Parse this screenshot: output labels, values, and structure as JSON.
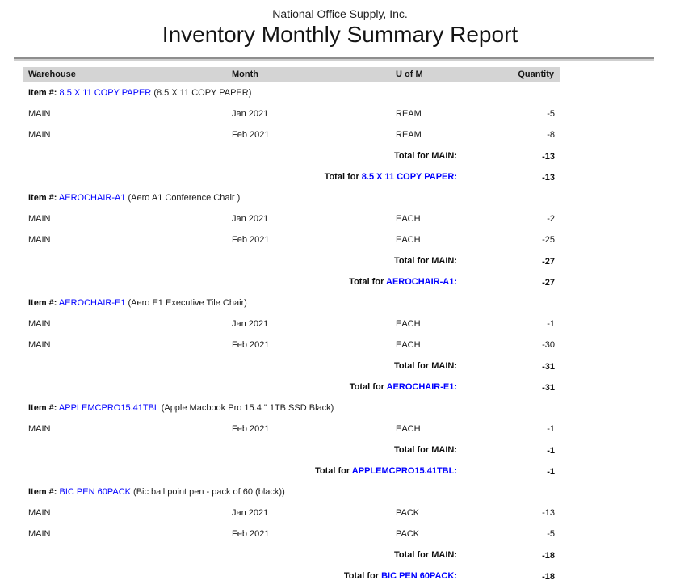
{
  "header": {
    "company": "National Office Supply, Inc.",
    "title": "Inventory Monthly Summary Report"
  },
  "table": {
    "columns": [
      "Warehouse",
      "Month",
      "U of M",
      "Quantity"
    ],
    "item_label": "Item #:",
    "item_total_prefix": "Total for ",
    "colors": {
      "item_link": "#0000FF",
      "header_band": "#D4D4D4",
      "divider_dark": "#8E8E8E",
      "divider_light": "#CFCFCF"
    },
    "sections": [
      {
        "item_no": "8.5 X 11 COPY PAPER",
        "description": "(8.5 X 11 COPY PAPER)",
        "rows": [
          {
            "warehouse": "MAIN",
            "month": "Jan 2021",
            "uom": "REAM",
            "qty": "-5"
          },
          {
            "warehouse": "MAIN",
            "month": "Feb 2021",
            "uom": "REAM",
            "qty": "-8"
          }
        ],
        "warehouse_total_label": "Total for MAIN:",
        "warehouse_total_value": "-13",
        "item_total_item": "8.5 X 11 COPY PAPER:",
        "item_total_value": "-13"
      },
      {
        "item_no": "AEROCHAIR-A1",
        "description": "(Aero A1 Conference Chair )",
        "rows": [
          {
            "warehouse": "MAIN",
            "month": "Jan 2021",
            "uom": "EACH",
            "qty": "-2"
          },
          {
            "warehouse": "MAIN",
            "month": "Feb 2021",
            "uom": "EACH",
            "qty": "-25"
          }
        ],
        "warehouse_total_label": "Total for MAIN:",
        "warehouse_total_value": "-27",
        "item_total_item": "AEROCHAIR-A1:",
        "item_total_value": "-27"
      },
      {
        "item_no": "AEROCHAIR-E1",
        "description": "(Aero E1 Executive Tile Chair)",
        "rows": [
          {
            "warehouse": "MAIN",
            "month": "Jan 2021",
            "uom": "EACH",
            "qty": "-1"
          },
          {
            "warehouse": "MAIN",
            "month": "Feb 2021",
            "uom": "EACH",
            "qty": "-30"
          }
        ],
        "warehouse_total_label": "Total for MAIN:",
        "warehouse_total_value": "-31",
        "item_total_item": "AEROCHAIR-E1:",
        "item_total_value": "-31"
      },
      {
        "item_no": "APPLEMCPRO15.41TBL",
        "description": "(Apple Macbook Pro 15.4 \" 1TB SSD Black)",
        "rows": [
          {
            "warehouse": "MAIN",
            "month": "Feb 2021",
            "uom": "EACH",
            "qty": "-1"
          }
        ],
        "warehouse_total_label": "Total for MAIN:",
        "warehouse_total_value": "-1",
        "item_total_item": "APPLEMCPRO15.41TBL:",
        "item_total_value": "-1"
      },
      {
        "item_no": "BIC PEN 60PACK",
        "description": "(Bic ball point pen - pack of 60 (black))",
        "rows": [
          {
            "warehouse": "MAIN",
            "month": "Jan 2021",
            "uom": "PACK",
            "qty": "-13"
          },
          {
            "warehouse": "MAIN",
            "month": "Feb 2021",
            "uom": "PACK",
            "qty": "-5"
          }
        ],
        "warehouse_total_label": "Total for MAIN:",
        "warehouse_total_value": "-18",
        "item_total_item": "BIC PEN 60PACK:",
        "item_total_value": "-18"
      }
    ]
  }
}
